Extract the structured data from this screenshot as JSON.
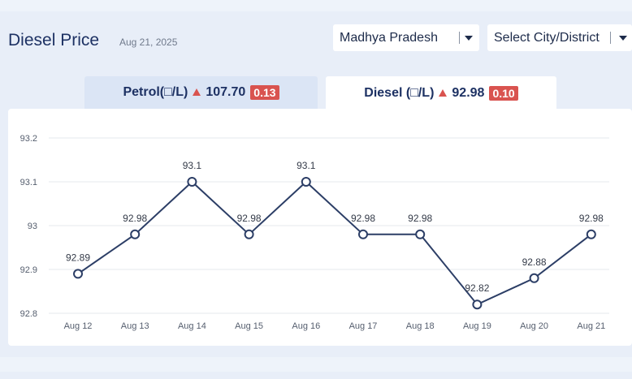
{
  "header": {
    "title": "Diesel Price",
    "date": "Aug 21, 2025"
  },
  "filters": {
    "state": "Madhya Pradesh",
    "city": "Select City/District"
  },
  "tabs": [
    {
      "label": "Petrol(□/L)",
      "price": "107.70",
      "change": "0.13",
      "trend": "up"
    },
    {
      "label": "Diesel (□/L)",
      "price": "92.98",
      "change": "0.10",
      "trend": "up"
    }
  ],
  "colors": {
    "line": "#2c3e66",
    "up_badge": "#d9534f",
    "grid": "#e5e8ee"
  },
  "chart_data": {
    "type": "line",
    "categories": [
      "Aug 12",
      "Aug 13",
      "Aug 14",
      "Aug 15",
      "Aug 16",
      "Aug 17",
      "Aug 18",
      "Aug 19",
      "Aug 20",
      "Aug 21"
    ],
    "values": [
      92.89,
      92.98,
      93.1,
      92.98,
      93.1,
      92.98,
      92.98,
      92.82,
      92.88,
      92.98
    ],
    "data_labels": [
      "92.89",
      "92.98",
      "93.1",
      "92.98",
      "93.1",
      "92.98",
      "92.98",
      "92.82",
      "92.88",
      "92.98"
    ],
    "y_ticks": [
      92.8,
      92.9,
      93,
      93.1,
      93.2
    ],
    "y_tick_labels": [
      "92.8",
      "92.9",
      "93",
      "93.1",
      "93.2"
    ],
    "ylim": [
      92.8,
      93.2
    ],
    "grid": true
  }
}
